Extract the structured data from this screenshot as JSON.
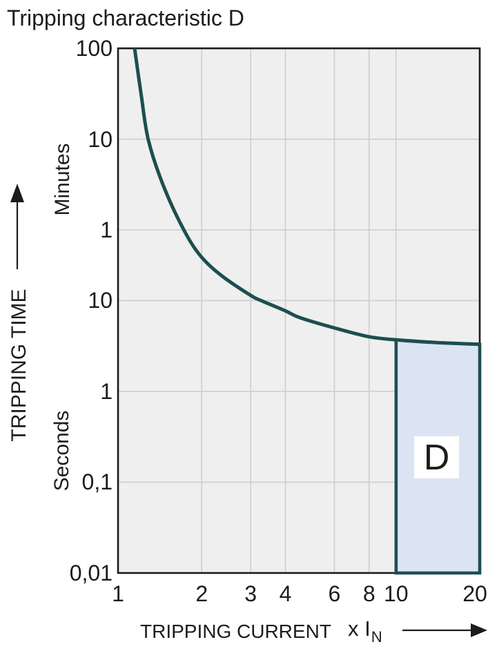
{
  "title": "Tripping characteristic D",
  "chart_data": {
    "type": "line",
    "title": "Tripping characteristic D",
    "x_axis": {
      "label": "TRIPPING CURRENT",
      "unit_prefix": "x I",
      "unit_subscript": "N",
      "scale": "log",
      "range": [
        1,
        20
      ],
      "ticks": [
        {
          "value": 1,
          "label": "1"
        },
        {
          "value": 2,
          "label": "2"
        },
        {
          "value": 3,
          "label": "3"
        },
        {
          "value": 4,
          "label": "4"
        },
        {
          "value": 6,
          "label": "6"
        },
        {
          "value": 8,
          "label": "8"
        },
        {
          "value": 10,
          "label": "10"
        },
        {
          "value": 20,
          "label": "20"
        }
      ]
    },
    "y_axis": {
      "label": "TRIPPING TIME",
      "scale": "log",
      "range_seconds": [
        0.01,
        6000
      ],
      "unit_sections": [
        {
          "label": "Minutes"
        },
        {
          "label": "Seconds"
        }
      ],
      "ticks": [
        {
          "seconds": 6000,
          "label": "100"
        },
        {
          "seconds": 600,
          "label": "10"
        },
        {
          "seconds": 60,
          "label": "1"
        },
        {
          "seconds": 10,
          "label": "10"
        },
        {
          "seconds": 1,
          "label": "1"
        },
        {
          "seconds": 0.1,
          "label": "0,1"
        },
        {
          "seconds": 0.01,
          "label": "0,01"
        }
      ]
    },
    "grid": {
      "x_lines": [
        2,
        3,
        4,
        6,
        8,
        10
      ],
      "y_lines_seconds": [
        600,
        60,
        10,
        1,
        0.1
      ]
    },
    "series": [
      {
        "name": "tripping-curve",
        "points_current_vs_seconds": [
          [
            1.147,
            6000
          ],
          [
            1.21,
            1900
          ],
          [
            1.286,
            584
          ],
          [
            1.46,
            180
          ],
          [
            1.74,
            57
          ],
          [
            2.0,
            30
          ],
          [
            2.37,
            18.6
          ],
          [
            3.0,
            11.4
          ],
          [
            3.27,
            10
          ],
          [
            4.0,
            7.7
          ],
          [
            4.5,
            6.5
          ],
          [
            6.0,
            5.0
          ],
          [
            8.0,
            4.0
          ],
          [
            10.0,
            3.7
          ],
          [
            14.0,
            3.45
          ],
          [
            20.0,
            3.3
          ]
        ]
      }
    ],
    "region": {
      "label": "D",
      "x_from": 10,
      "x_to": 20,
      "t_bottom_seconds": 0.01,
      "top_boundary": "tripping-curve"
    },
    "colors": {
      "curve": "#1d4f50",
      "region_fill": "#dce4f3",
      "region_border": "#1d4f50",
      "plot_background": "#efefef",
      "gridline": "#cdced2",
      "axis_border": "#1a1a1a",
      "text": "#1c1c1c",
      "region_label_background": "#ffffff"
    }
  }
}
